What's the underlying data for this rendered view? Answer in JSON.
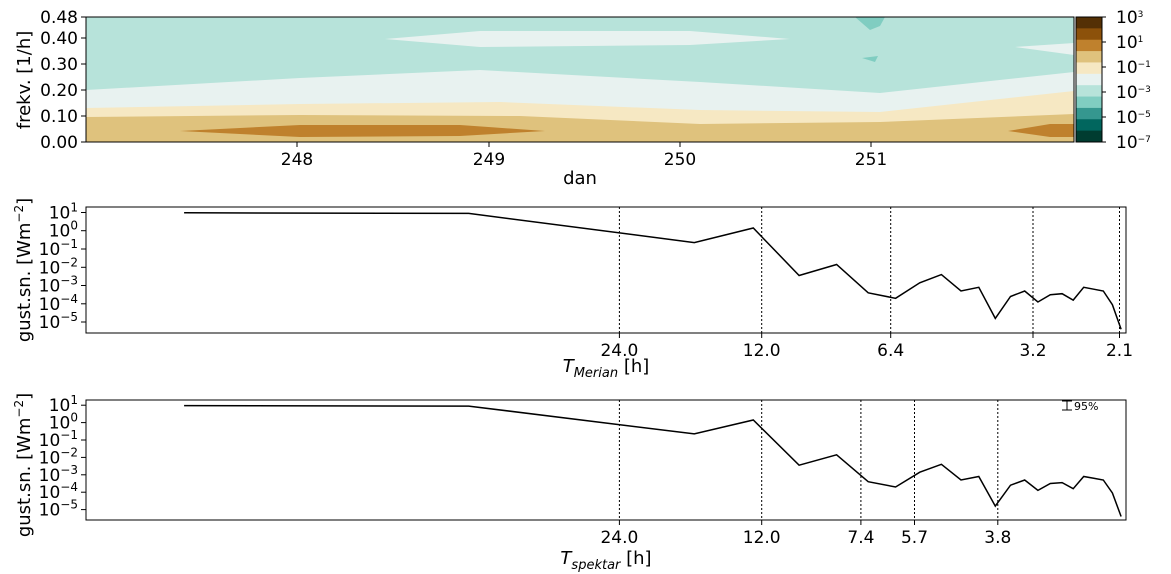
{
  "chart_data": [
    {
      "type": "heatmap",
      "xlabel": "dan",
      "ylabel": "frekv. [1/h]",
      "xticks": [
        "248",
        "249",
        "250",
        "251"
      ],
      "yticks": [
        "0.00",
        "0.10",
        "0.20",
        "0.30",
        "0.40",
        "0.48"
      ],
      "xlim": [
        247.05,
        251.95
      ],
      "ylim": [
        0,
        0.48
      ],
      "colorbar": {
        "scale": "log",
        "ticks": [
          {
            "base": "10",
            "exp": "3"
          },
          {
            "base": "10",
            "exp": "1"
          },
          {
            "base": "10",
            "exp": "−1"
          },
          {
            "base": "10",
            "exp": "−3"
          },
          {
            "base": "10",
            "exp": "−5"
          },
          {
            "base": "10",
            "exp": "−7"
          }
        ],
        "colors": [
          "#543005",
          "#8c510a",
          "#bf812d",
          "#dfc27d",
          "#f6e8c3",
          "#e8f2f0",
          "#b7e3da",
          "#80cdc1",
          "#35978f",
          "#01665e",
          "#003c30"
        ]
      }
    },
    {
      "type": "line",
      "ylabel_base": "gust.sn. [Wm",
      "ylabel_exp": "−2",
      "ylabel_close": "]",
      "xlabel_base": "T",
      "xlabel_sub": "Merian",
      "xlabel_unit": " [h]",
      "ylim_log10": [
        -5.6,
        1.3
      ],
      "ytick_exps": [
        "1",
        "0",
        "−1",
        "−2",
        "−3",
        "−4",
        "−5"
      ],
      "vlines": [
        "24.0",
        "12.0",
        "6.4",
        "3.2",
        "2.1"
      ],
      "vline_freq": [
        0.04167,
        0.08333,
        0.15625,
        0.3125,
        0.47619
      ],
      "freq": [
        0.005,
        0.02,
        0.06,
        0.08,
        0.1,
        0.12,
        0.14,
        0.16,
        0.18,
        0.2,
        0.22,
        0.24,
        0.26,
        0.28,
        0.3,
        0.32,
        0.34,
        0.36,
        0.38,
        0.4,
        0.42,
        0.44,
        0.46,
        0.48
      ],
      "log10_psd": [
        0.98,
        0.95,
        -0.65,
        0.15,
        -2.45,
        -1.85,
        -3.4,
        -3.7,
        -2.85,
        -2.4,
        -3.3,
        -3.1,
        -4.8,
        -3.6,
        -3.3,
        -3.9,
        -3.5,
        -3.45,
        -3.8,
        -3.1,
        -3.2,
        -3.3,
        -4.05,
        -5.4
      ]
    },
    {
      "type": "line",
      "ylabel_base": "gust.sn. [Wm",
      "ylabel_exp": "−2",
      "ylabel_close": "]",
      "xlabel_base": "T",
      "xlabel_sub": "spektar",
      "xlabel_unit": " [h]",
      "ylim_log10": [
        -5.6,
        1.3
      ],
      "ytick_exps": [
        "1",
        "0",
        "−1",
        "−2",
        "−3",
        "−4",
        "−5"
      ],
      "vlines": [
        "24.0",
        "12.0",
        "7.4",
        "5.7",
        "3.8"
      ],
      "vline_freq": [
        0.04167,
        0.08333,
        0.13514,
        0.17544,
        0.26316
      ],
      "ci_label": "95%",
      "freq": [
        0.005,
        0.02,
        0.06,
        0.08,
        0.1,
        0.12,
        0.14,
        0.16,
        0.18,
        0.2,
        0.22,
        0.24,
        0.26,
        0.28,
        0.3,
        0.32,
        0.34,
        0.36,
        0.38,
        0.4,
        0.42,
        0.44,
        0.46,
        0.48
      ],
      "log10_psd": [
        0.98,
        0.95,
        -0.65,
        0.15,
        -2.45,
        -1.85,
        -3.4,
        -3.7,
        -2.85,
        -2.4,
        -3.3,
        -3.1,
        -4.8,
        -3.6,
        -3.3,
        -3.9,
        -3.5,
        -3.45,
        -3.8,
        -3.1,
        -3.2,
        -3.3,
        -4.05,
        -5.4
      ]
    }
  ]
}
